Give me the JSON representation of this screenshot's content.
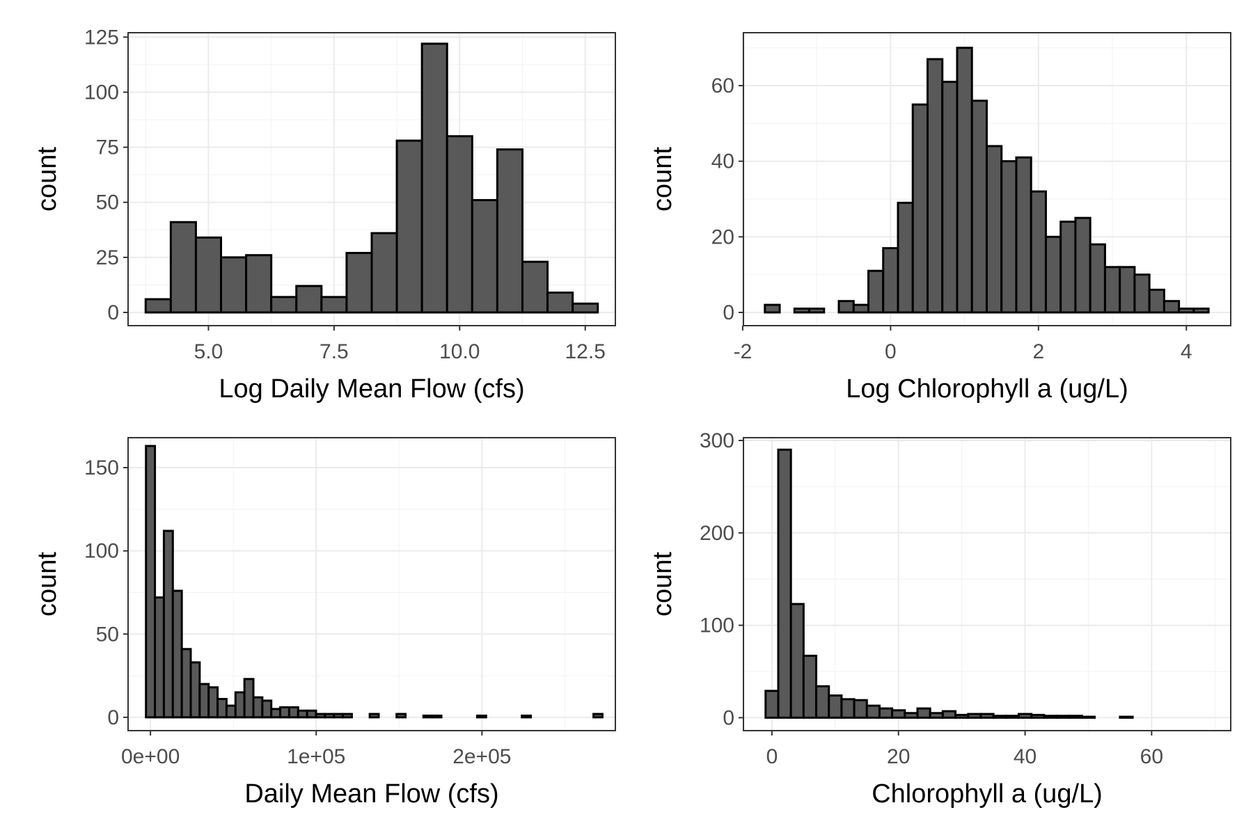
{
  "chart_data": [
    {
      "type": "bar",
      "xlabel": "Log Daily Mean Flow (cfs)",
      "ylabel": "count",
      "grid": true,
      "xlim": [
        3.4,
        13.1
      ],
      "ylim": [
        -6,
        127
      ],
      "x_ticks": [
        5.0,
        7.5,
        10.0,
        12.5
      ],
      "x_tick_labels": [
        "5.0",
        "7.5",
        "10.0",
        "12.5"
      ],
      "y_ticks": [
        0,
        25,
        50,
        75,
        100,
        125
      ],
      "y_tick_labels": [
        "0",
        "25",
        "50",
        "75",
        "100",
        "125"
      ],
      "bin_start": 3.75,
      "bin_width": 0.5,
      "values": [
        6,
        41,
        34,
        25,
        26,
        7,
        12,
        7,
        27,
        36,
        78,
        122,
        80,
        51,
        74,
        23,
        9,
        4
      ]
    },
    {
      "type": "bar",
      "xlabel": "Log Chlorophyll a (ug/L)",
      "ylabel": "count",
      "grid": true,
      "xlim": [
        -1.99,
        4.6
      ],
      "ylim": [
        -3.5,
        74
      ],
      "x_ticks": [
        -2,
        0,
        2,
        4
      ],
      "x_tick_labels": [
        "-2",
        "0",
        "2",
        "4"
      ],
      "y_ticks": [
        0,
        20,
        40,
        60
      ],
      "y_tick_labels": [
        "0",
        "20",
        "40",
        "60"
      ],
      "bin_start": -1.7,
      "bin_width": 0.2,
      "values": [
        2,
        0,
        1,
        1,
        0,
        3,
        2,
        11,
        17,
        29,
        55,
        67,
        61,
        70,
        56,
        44,
        40,
        41,
        32,
        20,
        24,
        25,
        18,
        12,
        12,
        10,
        6,
        3,
        1,
        1
      ]
    },
    {
      "type": "bar",
      "xlabel": "Daily Mean Flow (cfs)",
      "ylabel": "count",
      "grid": true,
      "xlim": [
        -13500,
        280500
      ],
      "ylim": [
        -8,
        168
      ],
      "x_ticks": [
        0,
        100000,
        200000
      ],
      "x_tick_labels": [
        "0e+00",
        "1e+05",
        "2e+05"
      ],
      "y_ticks": [
        0,
        50,
        100,
        150
      ],
      "y_tick_labels": [
        "0",
        "50",
        "100",
        "150"
      ],
      "bin_start": -2700,
      "bin_width": 5400,
      "values": [
        163,
        72,
        112,
        76,
        41,
        33,
        20,
        18,
        11,
        7,
        15,
        23,
        12,
        10,
        5,
        6,
        6,
        4,
        4,
        2,
        2,
        2,
        2,
        0,
        0,
        2,
        0,
        0,
        2,
        0,
        0,
        1,
        1,
        0,
        0,
        0,
        0,
        1,
        0,
        0,
        0,
        0,
        1,
        0,
        0,
        0,
        0,
        0,
        0,
        0,
        2
      ]
    },
    {
      "type": "bar",
      "xlabel": "Chlorophyll a (ug/L)",
      "ylabel": "count",
      "grid": true,
      "xlim": [
        -4.5,
        72.5
      ],
      "ylim": [
        -14,
        303
      ],
      "x_ticks": [
        0,
        20,
        40,
        60
      ],
      "x_tick_labels": [
        "0",
        "20",
        "40",
        "60"
      ],
      "y_ticks": [
        0,
        100,
        200,
        300
      ],
      "y_tick_labels": [
        "0",
        "100",
        "200",
        "300"
      ],
      "bin_start": -1,
      "bin_width": 2,
      "values": [
        29,
        290,
        123,
        67,
        34,
        24,
        20,
        19,
        13,
        10,
        8,
        5,
        10,
        5,
        7,
        3,
        4,
        4,
        2,
        2,
        4,
        3,
        2,
        2,
        2,
        1,
        0,
        0,
        1,
        0,
        0,
        0,
        0,
        0,
        0,
        0,
        0,
        0,
        0,
        1
      ]
    }
  ]
}
